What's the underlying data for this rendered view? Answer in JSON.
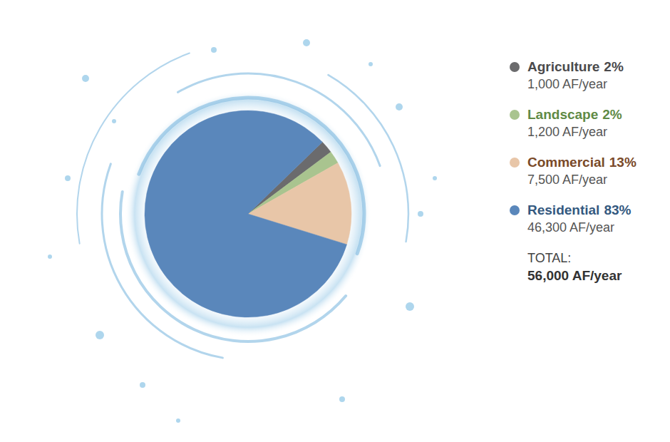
{
  "chart_data": {
    "type": "pie",
    "categories": [
      "Agriculture",
      "Landscape",
      "Commercial",
      "Residential"
    ],
    "values": [
      2,
      2,
      13,
      83
    ],
    "value_labels": [
      "2%",
      "2%",
      "13%",
      "83%"
    ],
    "volume_labels": [
      "1,000 AF/year",
      "1,200 AF/year",
      "7,500 AF/year",
      "46,300 AF/year"
    ],
    "total_label": "TOTAL:",
    "total_value_label": "56,000 AF/year",
    "colors": [
      "#6b6b6d",
      "#a9c48f",
      "#e8c6a8",
      "#5a87bb"
    ],
    "legend": "right"
  }
}
